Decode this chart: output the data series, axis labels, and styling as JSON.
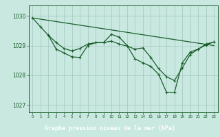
{
  "bg_color": "#c8e8e0",
  "grid_color": "#a0c8c0",
  "line_color": "#1a5c2a",
  "title": "Graphe pression niveau de la mer (hPa)",
  "title_bg": "#2a6e3a",
  "ylabel_ticks": [
    1027,
    1028,
    1029,
    1030
  ],
  "xlim": [
    -0.5,
    23.5
  ],
  "ylim": [
    1026.75,
    1030.35
  ],
  "line1_x": [
    0,
    23
  ],
  "line1_y": [
    1029.93,
    1029.0
  ],
  "line2_x": [
    0,
    1,
    2,
    3,
    4,
    5,
    6,
    7,
    8,
    9,
    10,
    11,
    12,
    13,
    14,
    15,
    16,
    17,
    18,
    19,
    20,
    21,
    22,
    23
  ],
  "line2_y": [
    1029.93,
    1029.63,
    1029.35,
    1028.88,
    1028.75,
    1028.62,
    1028.6,
    1029.0,
    1029.1,
    1029.1,
    1029.38,
    1029.28,
    1029.0,
    1028.55,
    1028.42,
    1028.3,
    1028.03,
    1027.42,
    1027.42,
    1028.42,
    1028.78,
    1028.88,
    1029.05,
    1029.12
  ],
  "line3_x": [
    2,
    3,
    4,
    5,
    6,
    7,
    8,
    9,
    10,
    11,
    12,
    13,
    14,
    15,
    16,
    17,
    18,
    19,
    20,
    21,
    22,
    23
  ],
  "line3_y": [
    1029.35,
    1029.1,
    1028.9,
    1028.82,
    1028.9,
    1029.05,
    1029.1,
    1029.1,
    1029.15,
    1029.05,
    1028.98,
    1028.88,
    1028.92,
    1028.6,
    1028.22,
    1027.95,
    1027.82,
    1028.25,
    1028.7,
    1028.88,
    1029.02,
    1029.12
  ]
}
